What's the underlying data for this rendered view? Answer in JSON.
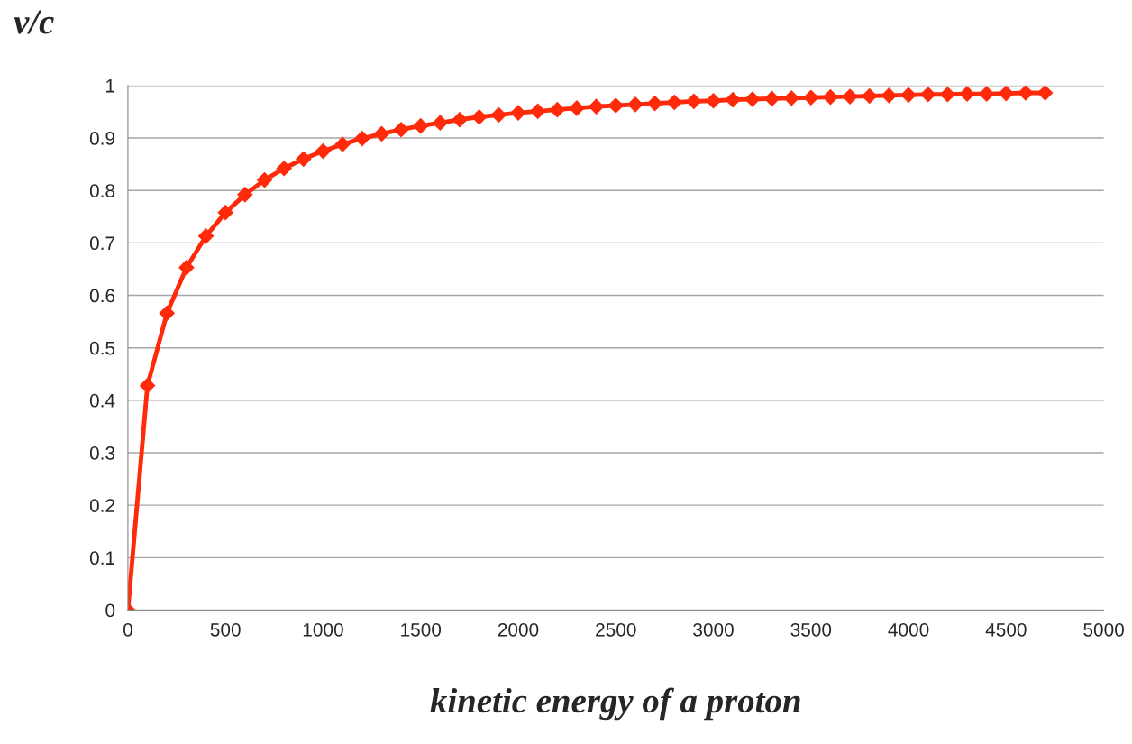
{
  "chart_data": {
    "type": "line",
    "ylabel": "v/c",
    "xlabel": "kinetic energy of a proton",
    "x": [
      0,
      100,
      200,
      300,
      400,
      500,
      600,
      700,
      800,
      900,
      1000,
      1100,
      1200,
      1300,
      1400,
      1500,
      1600,
      1700,
      1800,
      1900,
      2000,
      2100,
      2200,
      2300,
      2400,
      2500,
      2600,
      2700,
      2800,
      2900,
      3000,
      3100,
      3200,
      3300,
      3400,
      3500,
      3600,
      3700,
      3800,
      3900,
      4000,
      4100,
      4200,
      4300,
      4400,
      4500,
      4600,
      4700
    ],
    "series": [
      {
        "color": "#ff2a0a",
        "values": [
          0,
          0.428,
          0.566,
          0.653,
          0.713,
          0.758,
          0.792,
          0.82,
          0.842,
          0.86,
          0.875,
          0.888,
          0.899,
          0.908,
          0.916,
          0.923,
          0.929,
          0.935,
          0.94,
          0.944,
          0.948,
          0.951,
          0.954,
          0.957,
          0.96,
          0.962,
          0.964,
          0.966,
          0.968,
          0.97,
          0.971,
          0.973,
          0.974,
          0.975,
          0.976,
          0.977,
          0.978,
          0.979,
          0.98,
          0.981,
          0.982,
          0.983,
          0.983,
          0.984,
          0.984,
          0.985,
          0.986,
          0.986
        ]
      }
    ],
    "xlim": [
      0,
      5000
    ],
    "xticks": [
      0,
      500,
      1000,
      1500,
      2000,
      2500,
      3000,
      3500,
      4000,
      4500,
      5000
    ],
    "ylim": [
      0,
      1
    ],
    "yticks": [
      0,
      0.1,
      0.2,
      0.3,
      0.4,
      0.5,
      0.6,
      0.7,
      0.8,
      0.9,
      1
    ],
    "grid": "y",
    "marker": "diamond",
    "line_style": "solid",
    "legend": false
  }
}
